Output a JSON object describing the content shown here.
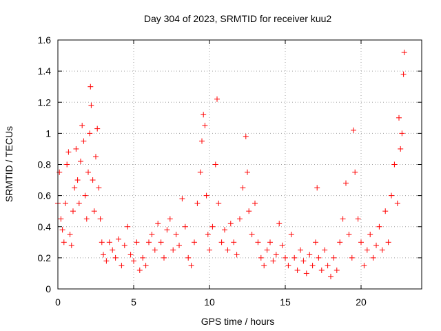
{
  "chart_data": {
    "type": "scatter",
    "title": "Day 304 of 2023, SRMTID for receiver kuu2",
    "xlabel": "GPS time / hours",
    "ylabel": "SRMTID / TECUs",
    "xlim": [
      0,
      24
    ],
    "ylim": [
      0,
      1.6
    ],
    "xticks": [
      0,
      5,
      10,
      15,
      20
    ],
    "yticks": [
      0,
      0.2,
      0.4,
      0.6,
      0.8,
      1,
      1.2,
      1.4,
      1.6
    ],
    "ytick_labels": [
      "0",
      "0.2",
      "0.4",
      "0.6",
      "0.8",
      "1",
      "1.2",
      "1.4",
      "1.6"
    ],
    "grid": true,
    "marker": "+",
    "color": "#ff0000",
    "series": [
      {
        "name": "SRMTID",
        "points": [
          [
            0.0,
            0.55
          ],
          [
            0.1,
            0.75
          ],
          [
            0.2,
            0.45
          ],
          [
            0.3,
            0.38
          ],
          [
            0.4,
            0.3
          ],
          [
            0.5,
            0.55
          ],
          [
            0.6,
            0.8
          ],
          [
            0.7,
            0.88
          ],
          [
            0.8,
            0.35
          ],
          [
            0.9,
            0.28
          ],
          [
            1.0,
            0.5
          ],
          [
            1.1,
            0.65
          ],
          [
            1.2,
            0.9
          ],
          [
            1.3,
            0.7
          ],
          [
            1.4,
            0.55
          ],
          [
            1.5,
            0.82
          ],
          [
            1.6,
            1.05
          ],
          [
            1.7,
            0.95
          ],
          [
            1.8,
            0.6
          ],
          [
            1.9,
            0.45
          ],
          [
            2.0,
            0.75
          ],
          [
            2.1,
            1.0
          ],
          [
            2.15,
            1.3
          ],
          [
            2.2,
            1.18
          ],
          [
            2.3,
            0.7
          ],
          [
            2.4,
            0.5
          ],
          [
            2.5,
            0.85
          ],
          [
            2.6,
            1.03
          ],
          [
            2.7,
            0.65
          ],
          [
            2.8,
            0.45
          ],
          [
            2.9,
            0.3
          ],
          [
            3.0,
            0.22
          ],
          [
            3.2,
            0.18
          ],
          [
            3.4,
            0.3
          ],
          [
            3.6,
            0.25
          ],
          [
            3.8,
            0.2
          ],
          [
            4.0,
            0.32
          ],
          [
            4.2,
            0.15
          ],
          [
            4.4,
            0.28
          ],
          [
            4.6,
            0.4
          ],
          [
            4.8,
            0.22
          ],
          [
            5.0,
            0.18
          ],
          [
            5.2,
            0.3
          ],
          [
            5.4,
            0.12
          ],
          [
            5.6,
            0.2
          ],
          [
            5.8,
            0.15
          ],
          [
            6.0,
            0.3
          ],
          [
            6.2,
            0.35
          ],
          [
            6.4,
            0.25
          ],
          [
            6.6,
            0.42
          ],
          [
            6.8,
            0.3
          ],
          [
            7.0,
            0.2
          ],
          [
            7.2,
            0.38
          ],
          [
            7.4,
            0.45
          ],
          [
            7.6,
            0.25
          ],
          [
            7.8,
            0.35
          ],
          [
            8.0,
            0.28
          ],
          [
            8.2,
            0.58
          ],
          [
            8.4,
            0.4
          ],
          [
            8.6,
            0.2
          ],
          [
            8.8,
            0.15
          ],
          [
            9.0,
            0.3
          ],
          [
            9.2,
            0.55
          ],
          [
            9.4,
            0.75
          ],
          [
            9.5,
            0.95
          ],
          [
            9.6,
            1.12
          ],
          [
            9.7,
            1.05
          ],
          [
            9.8,
            0.6
          ],
          [
            9.9,
            0.35
          ],
          [
            10.0,
            0.25
          ],
          [
            10.2,
            0.4
          ],
          [
            10.4,
            0.8
          ],
          [
            10.5,
            1.22
          ],
          [
            10.6,
            0.55
          ],
          [
            10.8,
            0.3
          ],
          [
            11.0,
            0.38
          ],
          [
            11.2,
            0.25
          ],
          [
            11.4,
            0.42
          ],
          [
            11.6,
            0.3
          ],
          [
            11.8,
            0.22
          ],
          [
            12.0,
            0.45
          ],
          [
            12.2,
            0.65
          ],
          [
            12.4,
            0.98
          ],
          [
            12.5,
            0.75
          ],
          [
            12.6,
            0.5
          ],
          [
            12.8,
            0.35
          ],
          [
            13.0,
            0.55
          ],
          [
            13.2,
            0.3
          ],
          [
            13.4,
            0.2
          ],
          [
            13.6,
            0.15
          ],
          [
            13.8,
            0.25
          ],
          [
            14.0,
            0.3
          ],
          [
            14.2,
            0.18
          ],
          [
            14.4,
            0.22
          ],
          [
            14.6,
            0.42
          ],
          [
            14.8,
            0.28
          ],
          [
            15.0,
            0.2
          ],
          [
            15.2,
            0.15
          ],
          [
            15.4,
            0.35
          ],
          [
            15.6,
            0.2
          ],
          [
            15.8,
            0.12
          ],
          [
            16.0,
            0.25
          ],
          [
            16.2,
            0.18
          ],
          [
            16.4,
            0.1
          ],
          [
            16.6,
            0.22
          ],
          [
            16.8,
            0.15
          ],
          [
            17.0,
            0.3
          ],
          [
            17.1,
            0.65
          ],
          [
            17.2,
            0.2
          ],
          [
            17.4,
            0.12
          ],
          [
            17.6,
            0.25
          ],
          [
            17.8,
            0.15
          ],
          [
            18.0,
            0.08
          ],
          [
            18.2,
            0.2
          ],
          [
            18.4,
            0.12
          ],
          [
            18.6,
            0.3
          ],
          [
            18.8,
            0.45
          ],
          [
            19.0,
            0.68
          ],
          [
            19.2,
            0.35
          ],
          [
            19.4,
            0.2
          ],
          [
            19.5,
            1.02
          ],
          [
            19.6,
            0.75
          ],
          [
            19.8,
            0.45
          ],
          [
            20.0,
            0.3
          ],
          [
            20.2,
            0.15
          ],
          [
            20.4,
            0.25
          ],
          [
            20.6,
            0.35
          ],
          [
            20.8,
            0.2
          ],
          [
            21.0,
            0.28
          ],
          [
            21.2,
            0.4
          ],
          [
            21.4,
            0.25
          ],
          [
            21.6,
            0.5
          ],
          [
            21.8,
            0.3
          ],
          [
            22.0,
            0.6
          ],
          [
            22.2,
            0.8
          ],
          [
            22.4,
            0.55
          ],
          [
            22.5,
            1.1
          ],
          [
            22.6,
            0.9
          ],
          [
            22.7,
            1.0
          ],
          [
            22.8,
            1.38
          ],
          [
            22.85,
            1.52
          ]
        ]
      }
    ]
  }
}
